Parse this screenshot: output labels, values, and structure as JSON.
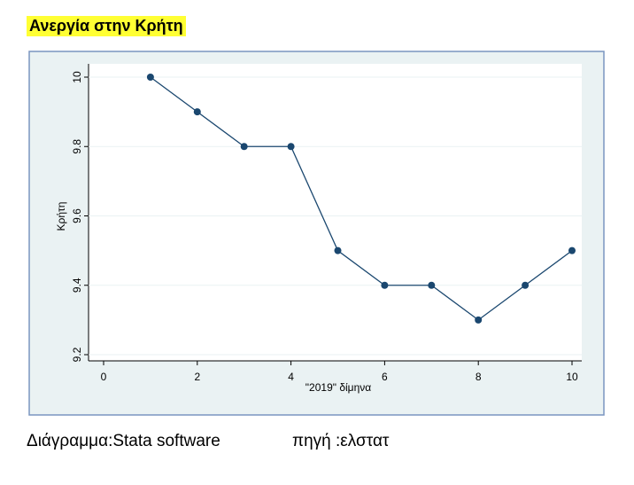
{
  "slide": {
    "title": "Ανεργία στην Κρήτη",
    "footer_left": "Διάγραμμα:Stata software",
    "footer_right": "πηγή :ελστατ"
  },
  "chart_data": {
    "type": "line",
    "x_label": "\"2019\" δίμηνα",
    "y_label": "Κρήτη",
    "x": [
      1,
      2,
      3,
      4,
      5,
      6,
      7,
      8,
      9,
      10
    ],
    "series": [
      {
        "name": "Κρήτη",
        "color": "#1a476f",
        "values": [
          10,
          9.9,
          9.8,
          9.8,
          9.5,
          9.4,
          9.4,
          9.3,
          9.4,
          9.5
        ]
      }
    ],
    "xlim": [
      0,
      10
    ],
    "xticks": [
      0,
      2,
      4,
      6,
      8,
      10
    ],
    "ylim": [
      9.2,
      10
    ],
    "yticks": [
      9.2,
      9.4,
      9.6,
      9.8,
      10
    ],
    "grid": true
  }
}
